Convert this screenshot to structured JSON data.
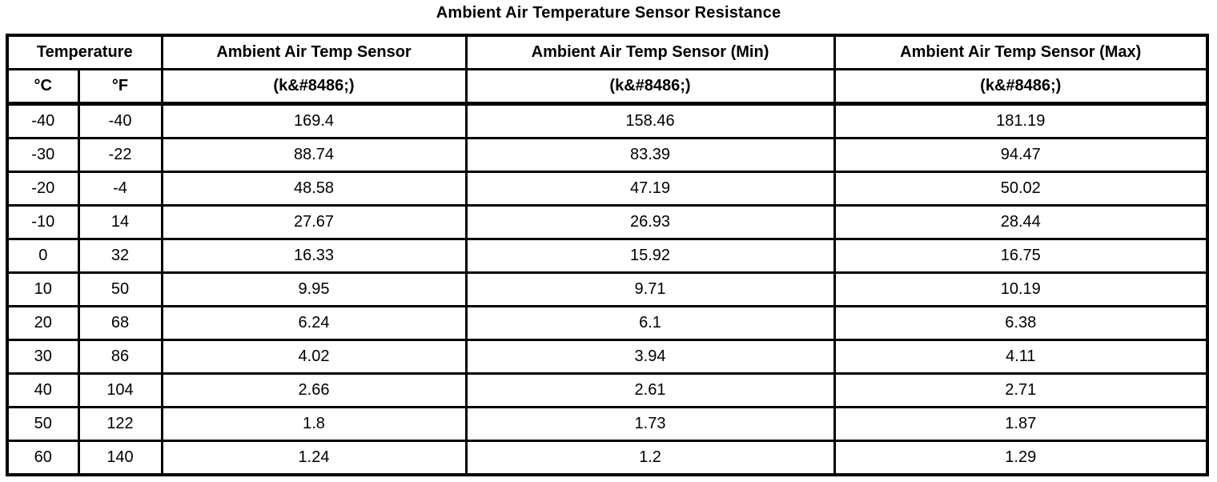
{
  "page": {
    "title": "Ambient Air Temperature Sensor Resistance"
  },
  "table": {
    "group_header": "Temperature",
    "columns": [
      {
        "id": "temp_c",
        "label": "°C",
        "unit": ""
      },
      {
        "id": "temp_f",
        "label": "°F",
        "unit": ""
      },
      {
        "id": "sensor",
        "label": "Ambient Air Temp Sensor",
        "unit": "(k&#8486;)"
      },
      {
        "id": "sensor_min",
        "label": "Ambient Air Temp Sensor (Min)",
        "unit": "(k&#8486;)"
      },
      {
        "id": "sensor_max",
        "label": "Ambient Air Temp Sensor (Max)",
        "unit": "(k&#8486;)"
      }
    ],
    "rows": [
      {
        "c": "-40",
        "f": "-40",
        "sensor": "169.4",
        "min": "158.46",
        "max": "181.19"
      },
      {
        "c": "-30",
        "f": "-22",
        "sensor": "88.74",
        "min": "83.39",
        "max": "94.47"
      },
      {
        "c": "-20",
        "f": "-4",
        "sensor": "48.58",
        "min": "47.19",
        "max": "50.02"
      },
      {
        "c": "-10",
        "f": "14",
        "sensor": "27.67",
        "min": "26.93",
        "max": "28.44"
      },
      {
        "c": "0",
        "f": "32",
        "sensor": "16.33",
        "min": "15.92",
        "max": "16.75"
      },
      {
        "c": "10",
        "f": "50",
        "sensor": "9.95",
        "min": "9.71",
        "max": "10.19"
      },
      {
        "c": "20",
        "f": "68",
        "sensor": "6.24",
        "min": "6.1",
        "max": "6.38"
      },
      {
        "c": "30",
        "f": "86",
        "sensor": "4.02",
        "min": "3.94",
        "max": "4.11"
      },
      {
        "c": "40",
        "f": "104",
        "sensor": "2.66",
        "min": "2.61",
        "max": "2.71"
      },
      {
        "c": "50",
        "f": "122",
        "sensor": "1.8",
        "min": "1.73",
        "max": "1.87"
      },
      {
        "c": "60",
        "f": "140",
        "sensor": "1.24",
        "min": "1.2",
        "max": "1.29"
      }
    ]
  }
}
